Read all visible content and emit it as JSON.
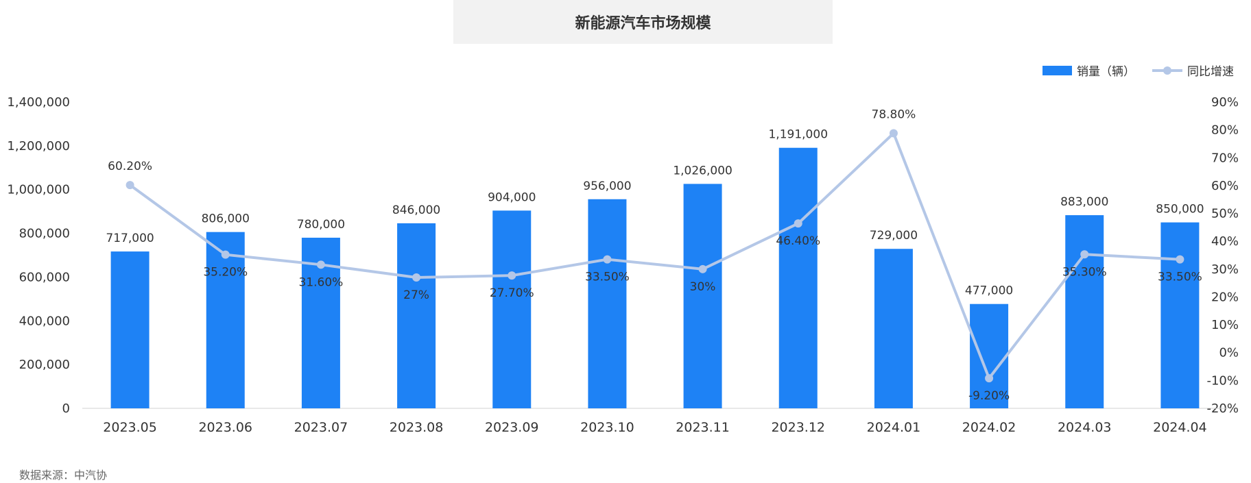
{
  "chart_title": "新能源汽车市场规模",
  "source_note": "数据来源：中汽协",
  "colors": {
    "bar": "#1e82f5",
    "line": "#b4c7e7",
    "title_bg": "#f2f2f2"
  },
  "chart_data": {
    "type": "bar",
    "title": "新能源汽车市场规模",
    "categories": [
      "2023.05",
      "2023.06",
      "2023.07",
      "2023.08",
      "2023.09",
      "2023.10",
      "2023.11",
      "2023.12",
      "2024.01",
      "2024.02",
      "2024.03",
      "2024.04"
    ],
    "series": [
      {
        "name": "销量（辆）",
        "type": "bar",
        "axis": "left",
        "values": [
          717000,
          806000,
          780000,
          846000,
          904000,
          956000,
          1026000,
          1191000,
          729000,
          477000,
          883000,
          850000
        ],
        "labels": [
          "717,000",
          "806,000",
          "780,000",
          "846,000",
          "904,000",
          "956,000",
          "1,026,000",
          "1,191,000",
          "729,000",
          "477,000",
          "883,000",
          "850,000"
        ]
      },
      {
        "name": "同比增速",
        "type": "line",
        "axis": "right",
        "values": [
          60.2,
          35.2,
          31.6,
          27.0,
          27.7,
          33.5,
          30.0,
          46.4,
          78.8,
          -9.2,
          35.3,
          33.5
        ],
        "labels": [
          "60.20%",
          "35.20%",
          "31.60%",
          "27%",
          "27.70%",
          "33.50%",
          "30%",
          "46.40%",
          "78.80%",
          "-9.20%",
          "35.30%",
          "33.50%"
        ]
      }
    ],
    "y_left": {
      "min": 0,
      "max": 1400000,
      "ticks": [
        "0",
        "200,000",
        "400,000",
        "600,000",
        "800,000",
        "1,000,000",
        "1,200,000",
        "1,400,000"
      ]
    },
    "y_right": {
      "min": -20,
      "max": 90,
      "ticks": [
        "-20%",
        "-10%",
        "0%",
        "10%",
        "20%",
        "30%",
        "40%",
        "50%",
        "60%",
        "70%",
        "80%",
        "90%"
      ]
    },
    "legend": {
      "position": "top-right",
      "items": [
        "销量（辆）",
        "同比增速"
      ]
    },
    "grid": false
  }
}
